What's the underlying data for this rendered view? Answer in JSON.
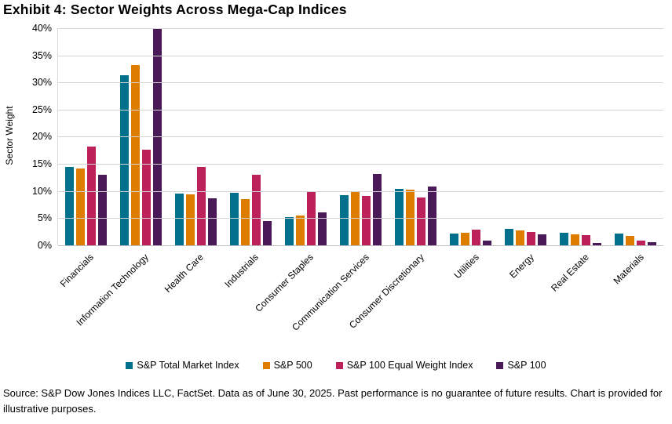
{
  "title": "Exhibit 4: Sector Weights Across Mega-Cap Indices",
  "source_note": "Source: S&P Dow Jones Indices LLC, FactSet. Data as of June 30, 2025. Past performance is no guarantee of future results. Chart is provided for illustrative purposes.",
  "chart_data": {
    "type": "bar",
    "title": "Exhibit 4: Sector Weights Across Mega-Cap Indices",
    "xlabel": "",
    "ylabel": "Sector Weight",
    "ylim": [
      0,
      40
    ],
    "ytick_step": 5,
    "yticks": [
      "0%",
      "5%",
      "10%",
      "15%",
      "20%",
      "25%",
      "30%",
      "35%",
      "40%"
    ],
    "grid": true,
    "gridline_color": "#d3d3d3",
    "legend_position": "bottom",
    "categories": [
      "Financials",
      "Information Technology",
      "Health Care",
      "Industrials",
      "Consumer Staples",
      "Communication Services",
      "Consumer Discretionary",
      "Utilities",
      "Energy",
      "Real Estate",
      "Materials"
    ],
    "series": [
      {
        "name": "S&P Total Market Index",
        "color": "#00708C",
        "values": [
          14.5,
          31.4,
          9.6,
          9.7,
          5.2,
          9.2,
          10.4,
          2.2,
          3.0,
          2.3,
          2.1
        ]
      },
      {
        "name": "S&P 500",
        "color": "#DE7C00",
        "values": [
          14.1,
          33.2,
          9.4,
          8.5,
          5.5,
          9.8,
          10.3,
          2.3,
          2.8,
          2.0,
          1.8
        ]
      },
      {
        "name": "S&P 100 Equal Weight Index",
        "color": "#BC2159",
        "values": [
          18.2,
          17.6,
          14.4,
          13.0,
          9.8,
          9.1,
          8.8,
          2.9,
          2.5,
          1.9,
          0.9
        ]
      },
      {
        "name": "S&P 100",
        "color": "#4A1A58",
        "values": [
          13.0,
          39.8,
          8.6,
          4.5,
          6.1,
          13.2,
          10.9,
          0.9,
          2.0,
          0.4,
          0.6
        ]
      }
    ]
  }
}
